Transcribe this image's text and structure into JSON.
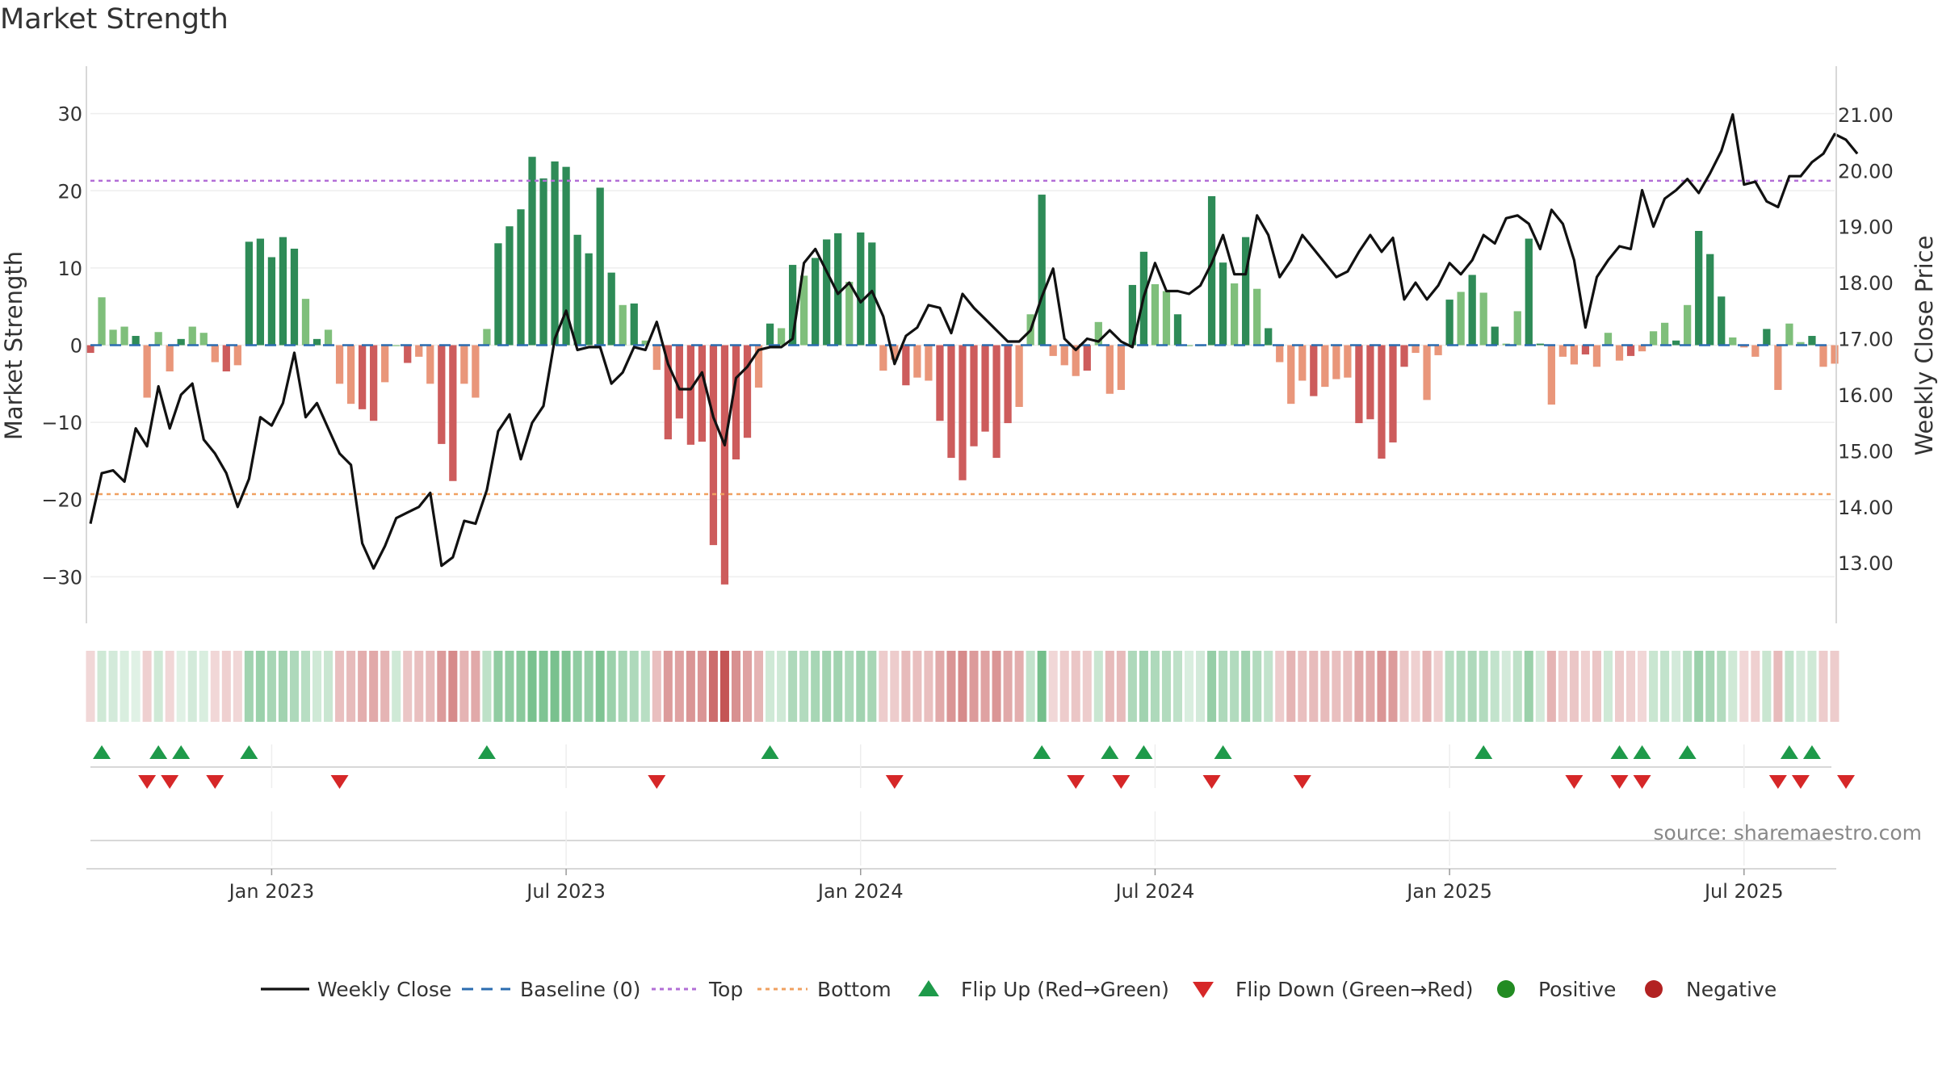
{
  "chart_data": {
    "type": "bar",
    "title": "Market Strength",
    "ylabel": "Market Strength",
    "y2label": "Weekly Close Price",
    "ylim": [
      -33,
      33
    ],
    "y2lim": [
      12.34,
      21.43
    ],
    "yticks": [
      30,
      20,
      10,
      0,
      -10,
      -20,
      -30
    ],
    "yticklabels": [
      "30",
      "20",
      "10",
      "0",
      "−10",
      "−20",
      "−30"
    ],
    "y2ticks": [
      21,
      20,
      19,
      18,
      17,
      16,
      15,
      14,
      13
    ],
    "y2ticklabels": [
      "21.00",
      "20.00",
      "19.00",
      "18.00",
      "17.00",
      "16.00",
      "15.00",
      "14.00",
      "13.00"
    ],
    "xticklabels": [
      "Jan 2023",
      "Jul 2023",
      "Jan 2024",
      "Jul 2024",
      "Jan 2025",
      "Jul 2025"
    ],
    "xtick_index": [
      16,
      42,
      68,
      94,
      120,
      146
    ],
    "top_line": 21.3,
    "bottom_line": -19.3,
    "baseline": 0,
    "strength": [
      -1,
      6.2,
      2,
      2.4,
      1.2,
      -6.8,
      1.7,
      -3.4,
      0.8,
      2.4,
      1.6,
      -2.2,
      -3.4,
      -2.6,
      13.4,
      13.8,
      11.4,
      14,
      12.5,
      6,
      0.8,
      2,
      -5,
      -7.6,
      -8.3,
      -9.8,
      -4.8,
      0,
      -2.3,
      -1.5,
      -5,
      -12.8,
      -17.6,
      -5,
      -6.8,
      2.1,
      13.2,
      15.4,
      17.6,
      24.4,
      21.6,
      23.8,
      23.1,
      14.3,
      11.9,
      20.4,
      9.4,
      5.2,
      5.4,
      0.6,
      -3.2,
      -12.2,
      -9.5,
      -12.9,
      -12.5,
      -25.9,
      -31,
      -14.8,
      -12,
      -5.5,
      2.8,
      2.2,
      10.4,
      9,
      11.3,
      13.7,
      14.5,
      8.2,
      14.6,
      13.3,
      -3.3,
      -1.9,
      -5.2,
      -4.2,
      -4.6,
      -9.8,
      -14.6,
      -17.5,
      -13.1,
      -11.2,
      -14.6,
      -10.1,
      -8,
      4,
      19.5,
      -1.4,
      -2.6,
      -4,
      -3.3,
      3,
      -6.3,
      -5.8,
      7.8,
      12.1,
      7.9,
      7,
      4,
      0,
      0,
      19.3,
      10.7,
      8,
      14,
      7.3,
      2.2,
      -2.2,
      -7.6,
      -4.6,
      -6.6,
      -5.4,
      -4.4,
      -4.2,
      -10.1,
      -9.6,
      -14.7,
      -12.6,
      -2.8,
      -1,
      -7.1,
      -1.3,
      5.9,
      6.9,
      9.1,
      6.8,
      2.4,
      0.2,
      4.4,
      13.8,
      0.2,
      -7.7,
      -1.5,
      -2.5,
      -1.2,
      -2.8,
      1.6,
      -2,
      -1.4,
      -0.8,
      1.8,
      2.9,
      0.6,
      5.2,
      14.8,
      11.8,
      6.3,
      1,
      -0.3,
      -1.5,
      2.1,
      -5.8,
      2.8,
      0.4,
      1.2,
      -2.8,
      -2.4
    ],
    "weekly_close": [
      13.7,
      14.6,
      14.65,
      14.45,
      15.4,
      15.08,
      16.15,
      15.4,
      16,
      16.2,
      15.2,
      14.95,
      14.6,
      14.0,
      14.5,
      15.6,
      15.45,
      15.85,
      16.75,
      15.6,
      15.85,
      15.4,
      14.95,
      14.75,
      13.35,
      12.9,
      13.3,
      13.8,
      13.9,
      14.0,
      14.25,
      12.95,
      13.1,
      13.75,
      13.7,
      14.3,
      15.35,
      15.65,
      14.85,
      15.5,
      15.8,
      17.0,
      17.5,
      16.8,
      16.85,
      16.85,
      16.2,
      16.4,
      16.85,
      16.8,
      17.3,
      16.55,
      16.1,
      16.1,
      16.4,
      15.6,
      15.1,
      16.3,
      16.5,
      16.8,
      16.85,
      16.85,
      17.0,
      18.35,
      18.6,
      18.2,
      17.8,
      18.0,
      17.65,
      17.85,
      17.4,
      16.55,
      17.05,
      17.2,
      17.6,
      17.55,
      17.1,
      17.8,
      17.55,
      17.35,
      17.15,
      16.95,
      16.95,
      17.15,
      17.75,
      18.25,
      17.0,
      16.8,
      17.0,
      16.95,
      17.15,
      16.95,
      16.85,
      17.75,
      18.35,
      17.85,
      17.85,
      17.8,
      17.95,
      18.35,
      18.85,
      18.15,
      18.15,
      19.2,
      18.85,
      18.1,
      18.4,
      18.85,
      18.6,
      18.35,
      18.1,
      18.2,
      18.55,
      18.85,
      18.55,
      18.8,
      17.7,
      18.0,
      17.7,
      17.95,
      18.35,
      18.15,
      18.4,
      18.85,
      18.7,
      19.15,
      19.2,
      19.05,
      18.6,
      19.3,
      19.05,
      18.4,
      17.2,
      18.1,
      18.4,
      18.65,
      18.6,
      19.65,
      19.0,
      19.5,
      19.65,
      19.85,
      19.6,
      19.95,
      20.35,
      21.0,
      19.75,
      19.8,
      19.45,
      19.35,
      19.9,
      19.9,
      20.15,
      20.3,
      20.65,
      20.55,
      20.3
    ],
    "band_intensity": [
      0.4,
      0.6,
      0.5,
      0.4,
      0.3,
      0.5,
      0.6,
      0.4,
      0.3,
      0.5,
      0.4,
      0.4,
      0.5,
      0.4,
      1.4,
      1.5,
      1.3,
      1.4,
      1.2,
      1.0,
      0.6,
      0.7,
      0.8,
      0.9,
      1.1,
      1.2,
      1.0,
      0.6,
      0.7,
      0.8,
      0.9,
      1.4,
      1.7,
      1.0,
      1.2,
      0.9,
      1.7,
      1.7,
      1.8,
      2.1,
      2.0,
      2.1,
      2.0,
      1.7,
      1.6,
      2.0,
      1.5,
      1.3,
      1.2,
      1.0,
      0.8,
      1.4,
      1.3,
      1.5,
      1.5,
      2.2,
      2.6,
      1.6,
      1.3,
      1.0,
      0.6,
      0.6,
      1.2,
      1.1,
      1.3,
      1.4,
      1.4,
      1.2,
      1.4,
      1.3,
      0.6,
      0.6,
      0.9,
      0.8,
      0.8,
      1.2,
      1.5,
      1.7,
      1.4,
      1.3,
      1.5,
      1.2,
      1.1,
      0.8,
      2.2,
      0.4,
      0.6,
      0.7,
      0.6,
      0.7,
      0.9,
      0.9,
      1.2,
      1.4,
      1.2,
      1.1,
      0.9,
      0.4,
      0.5,
      1.6,
      1.2,
      1.1,
      1.4,
      1.1,
      0.8,
      0.6,
      1.0,
      0.8,
      0.9,
      0.9,
      0.8,
      0.8,
      1.2,
      1.2,
      1.5,
      1.4,
      0.7,
      0.5,
      1.0,
      0.5,
      1.0,
      1.1,
      1.2,
      1.1,
      0.8,
      0.5,
      0.9,
      1.5,
      0.5,
      1.0,
      0.6,
      0.7,
      0.5,
      0.7,
      0.6,
      0.6,
      0.5,
      0.4,
      0.7,
      0.8,
      0.5,
      1.0,
      1.5,
      1.3,
      1.1,
      0.6,
      0.4,
      0.5,
      0.7,
      0.9,
      0.8,
      0.5,
      0.6,
      0.6,
      0.6
    ],
    "flip_up_index": [
      1,
      6,
      8,
      14,
      35,
      60,
      84,
      90,
      93,
      100,
      123,
      135,
      137,
      141,
      150,
      152
    ],
    "flip_down_index": [
      5,
      7,
      11,
      22,
      50,
      71,
      87,
      91,
      99,
      107,
      131,
      135,
      137,
      149,
      151,
      155
    ],
    "colors": {
      "pos_strong": "#2e8b57",
      "pos_light": "#7fbf7b",
      "neg_strong": "#cd5c5c",
      "neg_light": "#e9967a",
      "close_line": "#111111",
      "baseline": "#2b6cb0",
      "top": "#b26ed6",
      "bottom": "#f0a060",
      "flip_up": "#1e9a4a",
      "flip_down": "#d62728",
      "positive_dot": "#228b22",
      "negative_dot": "#b22222"
    },
    "legend": [
      "Weekly Close",
      "Baseline (0)",
      "Top",
      "Bottom",
      "Flip Up (Red→Green)",
      "Flip Down (Green→Red)",
      "Positive",
      "Negative"
    ],
    "legend_placement": "bottom-center"
  },
  "source": "source: sharemaestro.com"
}
